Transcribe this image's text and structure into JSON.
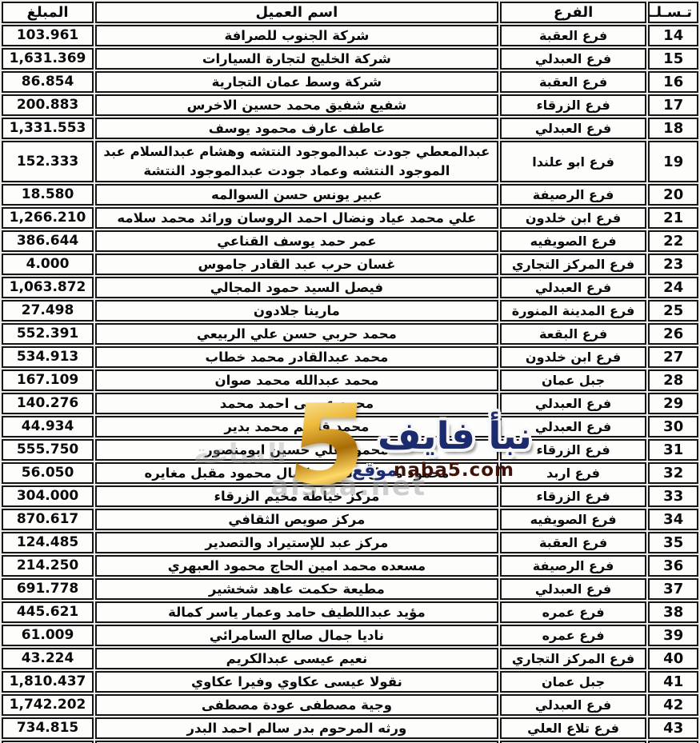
{
  "header": {
    "serial": "تـسـلـسل",
    "branch": "الفرع",
    "client": "اسم العميل",
    "amount": "المبلغ"
  },
  "rows": [
    {
      "serial": "14",
      "branch": "فرع العقبة",
      "client": "شركة الجنوب للصرافة",
      "amount": "103.961"
    },
    {
      "serial": "15",
      "branch": "فرع العبدلي",
      "client": "شركة الخليج لتجارة السيارات",
      "amount": "1,631.369"
    },
    {
      "serial": "16",
      "branch": "فرع العقبة",
      "client": "شركة وسط عمان التجارية",
      "amount": "86.854"
    },
    {
      "serial": "17",
      "branch": "فرع الزرقاء",
      "client": "شفيع شفيق محمد حسين الاخرس",
      "amount": "200.883"
    },
    {
      "serial": "18",
      "branch": "فرع العبدلي",
      "client": "عاطف عارف محمود يوسف",
      "amount": "1,331.553"
    },
    {
      "serial": "19",
      "branch": "فرع ابو علندا",
      "client": "عبدالمعطي جودت عبدالموجود النتشه وهشام عبدالسلام عبد الموجود النتشه وعماد جودت عبدالموجود النتشة",
      "amount": "152.333",
      "tall": true
    },
    {
      "serial": "20",
      "branch": "فرع الرصيفة",
      "client": "عبير يونس حسن السوالمه",
      "amount": "18.580"
    },
    {
      "serial": "21",
      "branch": "فرع ابن خلدون",
      "client": "علي محمد عياد ونضال احمد الروسان ورائد محمد سلامه",
      "amount": "1,266.210"
    },
    {
      "serial": "22",
      "branch": "فرع الصويفيه",
      "client": "عمر حمد يوسف القناعي",
      "amount": "386.644"
    },
    {
      "serial": "23",
      "branch": "فرع المركز التجاري",
      "client": "غسان حرب عبد القادر جاموس",
      "amount": "4.000"
    },
    {
      "serial": "24",
      "branch": "فرع العبدلي",
      "client": "فيصل السيد حمود المجالي",
      "amount": "1,063.872"
    },
    {
      "serial": "25",
      "branch": "فرع المدينة المنورة",
      "client": "مارينا جلادون",
      "amount": "27.498"
    },
    {
      "serial": "26",
      "branch": "فرع البقعة",
      "client": "محمد حربي حسن علي الربيعي",
      "amount": "552.391"
    },
    {
      "serial": "27",
      "branch": "فرع ابن خلدون",
      "client": "محمد عبدالقادر محمد خطاب",
      "amount": "534.913"
    },
    {
      "serial": "28",
      "branch": "جبل عمان",
      "client": "محمد عبدالله محمد صوان",
      "amount": "167.109"
    },
    {
      "serial": "29",
      "branch": "فرع العبدلي",
      "client": "محمد عيسى احمد محمد",
      "amount": "140.276"
    },
    {
      "serial": "30",
      "branch": "فرع العبدلي",
      "client": "محمد قاسم محمد بدير",
      "amount": "44.934"
    },
    {
      "serial": "31",
      "branch": "فرع الزرقاء",
      "client": "محمود علي حسين ابومنصور",
      "amount": "555.750"
    },
    {
      "serial": "32",
      "branch": "فرع اربد",
      "client": "محمود مقبل مغايره وكمال محمود مقبل مغايره",
      "amount": "56.050"
    },
    {
      "serial": "33",
      "branch": "فرع الزرقاء",
      "client": "مركز خياطة مخيم الزرقاء",
      "amount": "304.000"
    },
    {
      "serial": "34",
      "branch": "فرع الصويفيه",
      "client": "مركز صويص الثقافي",
      "amount": "870.617"
    },
    {
      "serial": "35",
      "branch": "فرع العقبة",
      "client": "مركز عبد للإستيراد والتصدير",
      "amount": "124.485"
    },
    {
      "serial": "36",
      "branch": "فرع الرصيفة",
      "client": "مسعده محمد امين الحاج محمود العبهري",
      "amount": "214.250"
    },
    {
      "serial": "37",
      "branch": "فرع العبدلي",
      "client": "مطيعة حكمت عاهد شخشير",
      "amount": "691.778"
    },
    {
      "serial": "38",
      "branch": "فرع عمره",
      "client": "مؤيد عبداللطيف حامد وعمار ياسر كمالة",
      "amount": "445.621"
    },
    {
      "serial": "39",
      "branch": "فرع عمره",
      "client": "ناديا جمال صالح السامرائي",
      "amount": "61.009"
    },
    {
      "serial": "40",
      "branch": "فرع المركز التجاري",
      "client": "نعيم عيسى عبدالكريم",
      "amount": "43.224"
    },
    {
      "serial": "41",
      "branch": "جبل عمان",
      "client": "نقولا عيسى عكاوي وفيرا عكاوي",
      "amount": "1,810.437"
    },
    {
      "serial": "42",
      "branch": "فرع العبدلي",
      "client": "وجية مصطفى عودة مصطفى",
      "amount": "1,742.202"
    },
    {
      "serial": "43",
      "branch": "فرع تلاع العلي",
      "client": "ورثه المرحوم بدر سالم احمد البدر",
      "amount": "734.815"
    }
  ],
  "watermark": {
    "number": "5",
    "brand": "نبأ فايف",
    "site_prefix": "موقع",
    "site": "naba5.com",
    "alsaa_latin": "alsaa.net",
    "alsaa_arabic": "الساعة",
    "brand_color": "#1c2a6e",
    "gold_color": "#eebc3e",
    "site_color": "#3e130a"
  }
}
